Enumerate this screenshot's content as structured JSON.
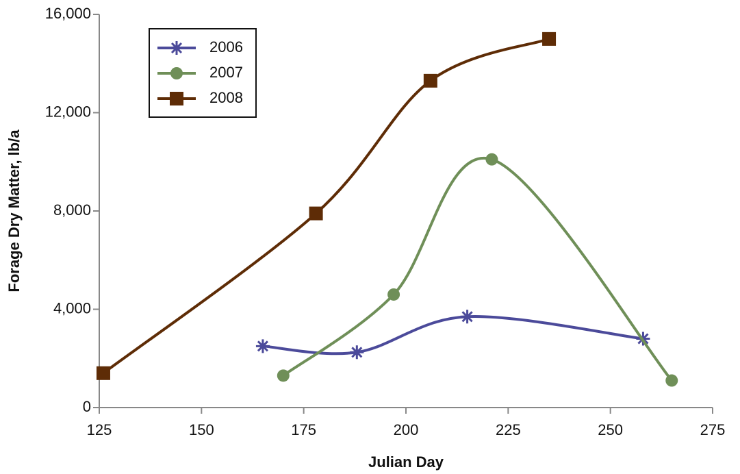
{
  "chart_data": {
    "type": "line",
    "x_label": "Julian Day",
    "y_label": "Forage Dry Matter, lb/a",
    "xlim": [
      125,
      275
    ],
    "xticks": [
      125,
      150,
      175,
      200,
      225,
      250,
      275
    ],
    "ylim": [
      0,
      16000
    ],
    "yticks": [
      0,
      {
        "value": 4000,
        "label": "4,000"
      },
      {
        "value": 8000,
        "label": "8,000"
      },
      {
        "value": 12000,
        "label": "12,000"
      },
      {
        "value": 16000,
        "label": "16,000"
      }
    ],
    "grid": false,
    "legend": "upper left",
    "smooth": true,
    "series": [
      {
        "name": "2006",
        "color": "#4b4a9a",
        "marker": "star",
        "x": [
          165,
          188,
          215,
          258
        ],
        "values": [
          2500,
          2250,
          3700,
          2800
        ]
      },
      {
        "name": "2007",
        "color": "#6f8f58",
        "marker": "circle",
        "x": [
          170,
          197,
          221,
          265
        ],
        "values": [
          1300,
          4600,
          10100,
          1100
        ]
      },
      {
        "name": "2008",
        "color": "#5e2c06",
        "marker": "square",
        "x": [
          126,
          178,
          206,
          235
        ],
        "values": [
          1400,
          7900,
          13300,
          15000
        ]
      }
    ]
  }
}
